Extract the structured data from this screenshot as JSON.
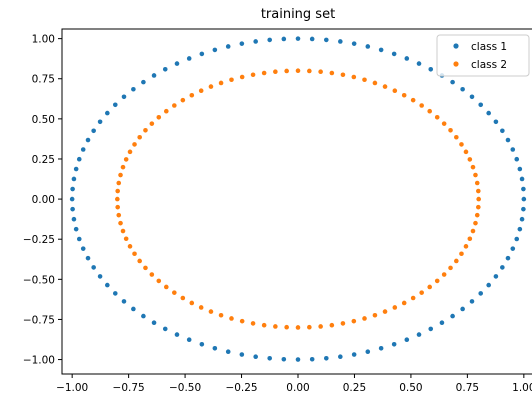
{
  "chart_data": {
    "type": "scatter",
    "title": "training set",
    "xlabel": "",
    "ylabel": "",
    "xlim": [
      -1.045,
      1.045
    ],
    "ylim": [
      -1.09,
      1.06
    ],
    "xticks": [
      "−1.00",
      "−0.75",
      "−0.50",
      "−0.25",
      "0.00",
      "0.25",
      "0.50",
      "0.75",
      "1.00"
    ],
    "xtick_values": [
      -1.0,
      -0.75,
      -0.5,
      -0.25,
      0.0,
      0.25,
      0.5,
      0.75,
      1.0
    ],
    "yticks": [
      "1.00",
      "0.75",
      "0.50",
      "0.25",
      "0.00",
      "−0.25",
      "−0.50",
      "−0.75",
      "−1.00"
    ],
    "ytick_values": [
      1.0,
      0.75,
      0.5,
      0.25,
      0.0,
      -0.25,
      -0.5,
      -0.75,
      -1.0
    ],
    "grid": false,
    "legend_position": "top-right",
    "series": [
      {
        "name": "class 1",
        "color": "#1f77b4",
        "shape": "circle",
        "radius": 1.0,
        "n_points": 100
      },
      {
        "name": "class 2",
        "color": "#ff7f0e",
        "shape": "circle",
        "radius": 0.8,
        "n_points": 100
      }
    ]
  }
}
